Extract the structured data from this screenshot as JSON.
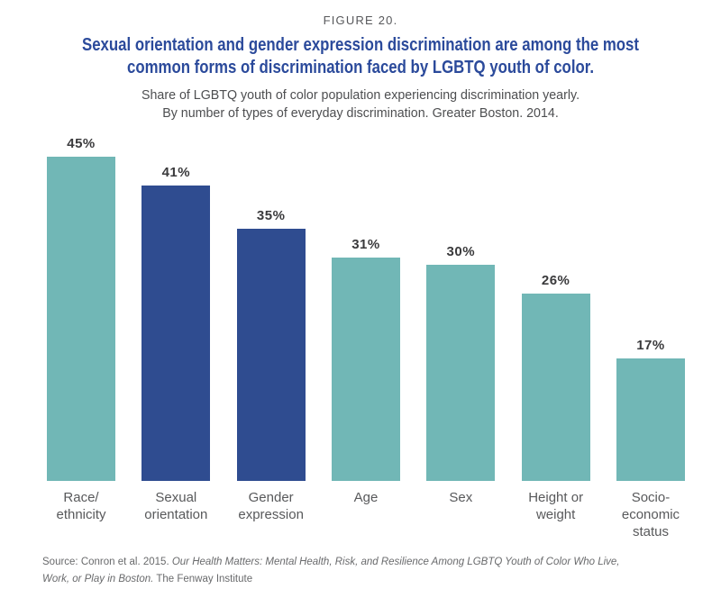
{
  "chart_data": {
    "type": "bar",
    "figure_label": "FIGURE 20.",
    "title": "Sexual orientation and gender expression discrimination are among the most common forms of discrimination faced by LGBTQ youth of color.",
    "title_lines": [
      "Sexual orientation and gender expression discrimination are among the most",
      "common forms of discrimination faced by LGBTQ youth of color."
    ],
    "subtitle_lines": [
      "Share of LGBTQ youth of color population experiencing discrimination yearly.",
      "By number of types of everyday discrimination. Greater Boston. 2014."
    ],
    "categories": [
      "Race/\nethnicity",
      "Sexual\norientation",
      "Gender\nexpression",
      "Age",
      "Sex",
      "Height or\nweight",
      "Socio-\neconomic\nstatus"
    ],
    "values": [
      45,
      41,
      35,
      31,
      30,
      26,
      17
    ],
    "data_labels": [
      "45%",
      "41%",
      "35%",
      "31%",
      "30%",
      "26%",
      "17%"
    ],
    "bar_colors": [
      "#71B7B6",
      "#2F4C90",
      "#2F4C90",
      "#71B7B6",
      "#71B7B6",
      "#71B7B6",
      "#71B7B6"
    ],
    "xlabel": "",
    "ylabel": "",
    "ylim": [
      0,
      50
    ],
    "grid": false,
    "legend": false,
    "colors": {
      "teal": "#71B7B6",
      "navy": "#2F4C90",
      "title_blue": "#2B4A9B",
      "label_gray": "#58595B",
      "value_gray": "#3A3A3C"
    }
  },
  "source": {
    "prefix": "Source: Conron et al. 2015. ",
    "italic": "Our Health Matters: Mental Health, Risk, and Resilience Among LGBTQ Youth of Color Who Live, Work, or Play in Boston.",
    "suffix": " The Fenway Institute"
  }
}
